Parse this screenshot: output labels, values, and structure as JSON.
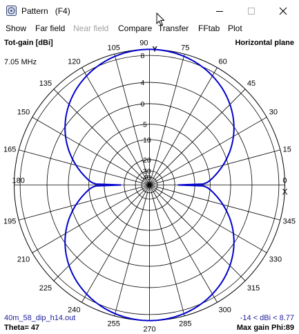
{
  "window": {
    "title": "Pattern   (F4)"
  },
  "menu": [
    {
      "label": "Show",
      "enabled": true
    },
    {
      "label": "Far field",
      "enabled": true
    },
    {
      "label": "Near field",
      "enabled": false
    },
    {
      "label": "Compare",
      "enabled": true
    },
    {
      "label": "Transfer",
      "enabled": true
    },
    {
      "label": "FFtab",
      "enabled": true
    },
    {
      "label": "Plot",
      "enabled": true
    }
  ],
  "plot": {
    "gain_label": "Tot-gain [dBi]",
    "plane_label": "Horizontal plane",
    "frequency": "7.05 MHz",
    "filename": "40m_58_dip_h14.out",
    "range_text": "-14 < dBi < 8.77",
    "theta_text": "Theta= 47",
    "max_gain_text": "Max gain Phi:89",
    "axis_letter_y": "Y",
    "axis_letter_x": "X",
    "angle_labels": [
      "0",
      "15",
      "30",
      "45",
      "60",
      "75",
      "90",
      "105",
      "120",
      "135",
      "150",
      "165",
      "180",
      "195",
      "210",
      "225",
      "240",
      "255",
      "270",
      "285",
      "300",
      "315",
      "330",
      "345"
    ],
    "ring_labels": [
      "8",
      "4",
      "0",
      "-5",
      "-10",
      "-20",
      "-30",
      "-40"
    ],
    "trace_color": "#0000cc",
    "max_gain_dbi": 8.77
  }
}
